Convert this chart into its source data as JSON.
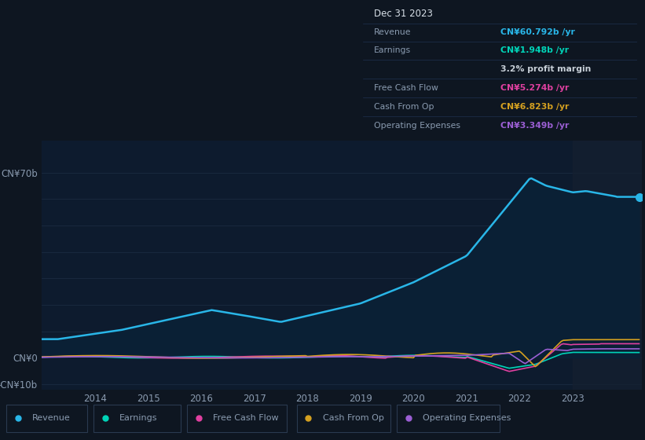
{
  "bg_color": "#0e1621",
  "plot_bg_color": "#0d1b2e",
  "grid_color": "#1e2f45",
  "text_color": "#8a9bb0",
  "ylim": [
    -12,
    82
  ],
  "xtick_labels": [
    "2014",
    "2015",
    "2016",
    "2017",
    "2018",
    "2019",
    "2020",
    "2021",
    "2022",
    "2023"
  ],
  "revenue_color": "#29b6e8",
  "earnings_color": "#00d4b8",
  "fcf_color": "#e040a0",
  "cashop_color": "#d4a020",
  "opex_color": "#9b5fd4",
  "legend_items": [
    "Revenue",
    "Earnings",
    "Free Cash Flow",
    "Cash From Op",
    "Operating Expenses"
  ],
  "legend_colors": [
    "#29b6e8",
    "#00d4b8",
    "#e040a0",
    "#d4a020",
    "#9b5fd4"
  ],
  "info_box": {
    "title": "Dec 31 2023",
    "rows": [
      {
        "label": "Revenue",
        "value": "CN¥60.792b /yr",
        "color": "#29b6e8",
        "indent": false
      },
      {
        "label": "Earnings",
        "value": "CN¥1.948b /yr",
        "color": "#00d4b8",
        "indent": false
      },
      {
        "label": "",
        "value": "3.2% profit margin",
        "color": "#c8d0d8",
        "indent": true
      },
      {
        "label": "Free Cash Flow",
        "value": "CN¥5.274b /yr",
        "color": "#e040a0",
        "indent": false
      },
      {
        "label": "Cash From Op",
        "value": "CN¥6.823b /yr",
        "color": "#d4a020",
        "indent": false
      },
      {
        "label": "Operating Expenses",
        "value": "CN¥3.349b /yr",
        "color": "#9b5fd4",
        "indent": false
      }
    ],
    "label_color": "#8a9bb0",
    "title_color": "#d8e0e8",
    "bg_color": "#080e18",
    "border_color": "#1e3050"
  }
}
